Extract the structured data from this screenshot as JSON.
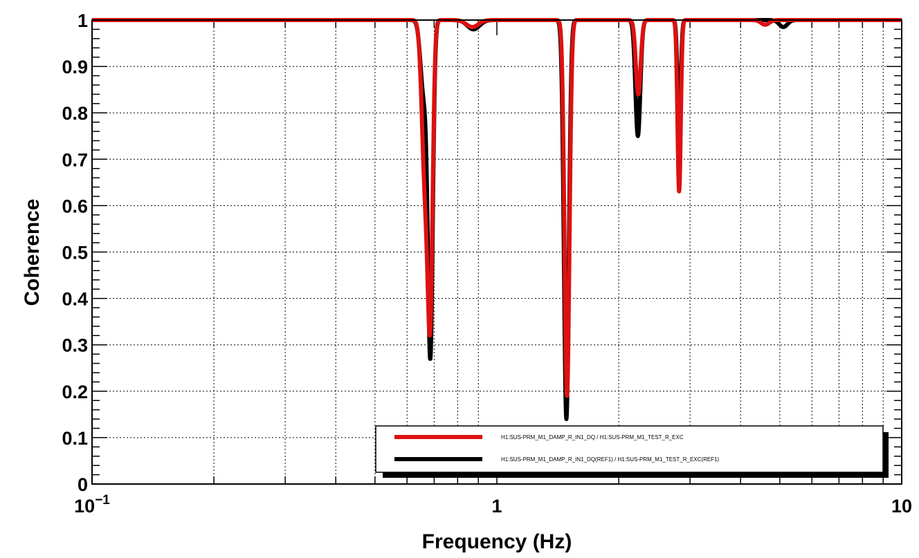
{
  "chart_data": {
    "type": "line",
    "xlabel": "Frequency (Hz)",
    "ylabel": "Coherence",
    "xscale": "log",
    "xlim": [
      0.1,
      10
    ],
    "ylim": [
      0,
      1
    ],
    "grid": true,
    "legend_position": "bottom-right",
    "x_tick_labels": [
      {
        "value": 0.1,
        "base": "10",
        "exp": "−1"
      },
      {
        "value": 1,
        "base": "1",
        "exp": ""
      },
      {
        "value": 10,
        "base": "10",
        "exp": ""
      }
    ],
    "y_ticks": [
      0,
      0.1,
      0.2,
      0.3,
      0.4,
      0.5,
      0.6,
      0.7,
      0.8,
      0.9,
      1
    ],
    "y_tick_labels": [
      "0",
      "0.1",
      "0.2",
      "0.3",
      "0.4",
      "0.5",
      "0.6",
      "0.7",
      "0.8",
      "0.9",
      "1"
    ],
    "series": [
      {
        "name": "H1:SUS-PRM_M1_DAMP_R_IN1_DQ(REF1) / H1:SUS-PRM_M1_TEST_R_EXC(REF1)",
        "color": "#000000",
        "baseline": 1.0,
        "features": [
          {
            "x": 0.66,
            "min": 0.84,
            "width": 0.008
          },
          {
            "x": 0.685,
            "min": 0.29,
            "width": 0.006
          },
          {
            "x": 0.875,
            "min": 0.98,
            "width": 0.015
          },
          {
            "x": 1.485,
            "min": 0.14,
            "width": 0.006
          },
          {
            "x": 2.23,
            "min": 0.75,
            "width": 0.006
          },
          {
            "x": 2.82,
            "min": 0.77,
            "width": 0.004
          },
          {
            "x": 5.1,
            "min": 0.985,
            "width": 0.01
          }
        ]
      },
      {
        "name": "H1:SUS-PRM_M1_DAMP_R_IN1_DQ / H1:SUS-PRM_M1_TEST_R_EXC",
        "color": "#dd1111",
        "baseline": 1.0,
        "features": [
          {
            "x": 0.665,
            "min": 0.65,
            "width": 0.008
          },
          {
            "x": 0.685,
            "min": 0.43,
            "width": 0.006
          },
          {
            "x": 0.87,
            "min": 0.985,
            "width": 0.015
          },
          {
            "x": 1.49,
            "min": 0.19,
            "width": 0.006
          },
          {
            "x": 2.235,
            "min": 0.84,
            "width": 0.006
          },
          {
            "x": 2.82,
            "min": 0.63,
            "width": 0.004
          },
          {
            "x": 4.6,
            "min": 0.99,
            "width": 0.01
          }
        ]
      }
    ]
  }
}
